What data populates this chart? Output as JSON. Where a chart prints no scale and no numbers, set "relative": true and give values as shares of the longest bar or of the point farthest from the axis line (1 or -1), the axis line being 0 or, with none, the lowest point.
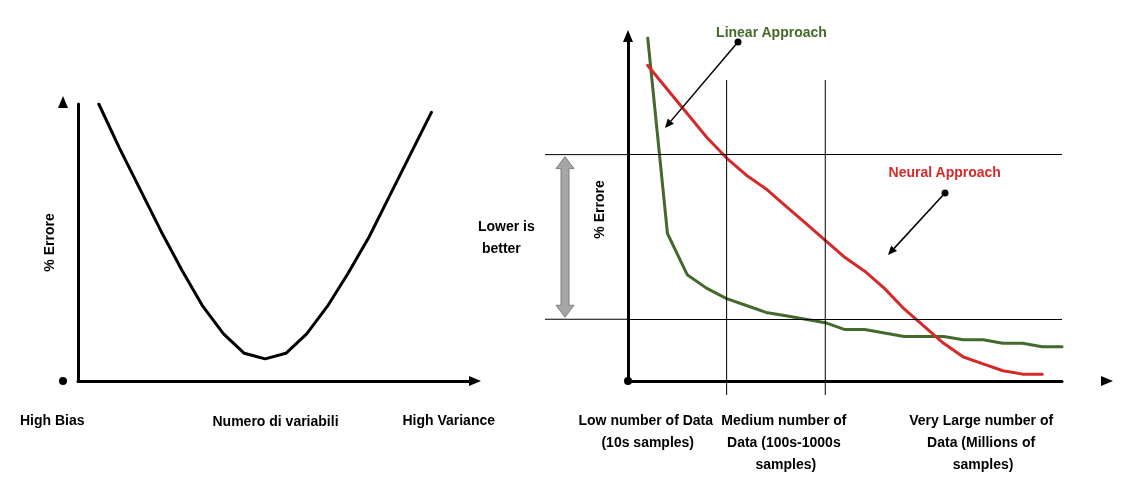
{
  "chart_data": [
    {
      "type": "line",
      "relative": true,
      "ylabel": "% Errore",
      "xlabel": "Numero di variabili",
      "marker": "none",
      "categories": [
        null,
        null,
        null,
        null,
        null,
        null,
        null,
        null,
        null,
        null,
        null,
        null,
        null,
        null,
        null,
        null,
        null,
        null,
        null,
        null
      ],
      "series": [
        {
          "color": "#000000",
          "values": [
            null,
            1.0,
            0.84,
            0.69,
            0.54,
            0.4,
            0.27,
            0.17,
            0.1,
            0.08,
            0.1,
            0.17,
            0.27,
            0.39,
            0.52,
            0.67,
            0.82,
            0.97,
            null,
            null
          ]
        }
      ],
      "annotations": [
        "High Bias",
        "High Variance"
      ]
    },
    {
      "type": "line",
      "relative": true,
      "ylabel": "% Errore",
      "marker": "none",
      "categories": [
        null,
        "Low number of Data (10s samples)",
        null,
        null,
        null,
        null,
        null,
        null,
        "Medium number of Data (100s-1000s samples)",
        null,
        null,
        null,
        null,
        null,
        null,
        null,
        null,
        null,
        "Very Large number of Data (Millions of samples)",
        null,
        null,
        null,
        null
      ],
      "series": [
        {
          "name": "Linear Approach",
          "color": "#44692c",
          "values": [
            null,
            1.0,
            0.43,
            0.31,
            0.27,
            0.24,
            0.22,
            0.2,
            0.19,
            0.18,
            0.17,
            0.15,
            0.15,
            0.14,
            0.13,
            0.13,
            0.13,
            0.12,
            0.12,
            0.11,
            0.11,
            0.1,
            0.1
          ]
        },
        {
          "name": "Neural Approach",
          "color": "#d42a2a",
          "values": [
            null,
            0.92,
            0.85,
            0.78,
            0.71,
            0.65,
            0.6,
            0.56,
            0.51,
            0.46,
            0.41,
            0.36,
            0.32,
            0.27,
            0.21,
            0.16,
            0.11,
            0.07,
            0.05,
            0.03,
            0.02,
            0.02,
            null
          ]
        }
      ],
      "ref_lines": [
        {
          "axis": "y",
          "value": 0.66
        },
        {
          "axis": "y",
          "value": 0.18
        }
      ],
      "annotations": [
        "Lower is better"
      ]
    }
  ]
}
